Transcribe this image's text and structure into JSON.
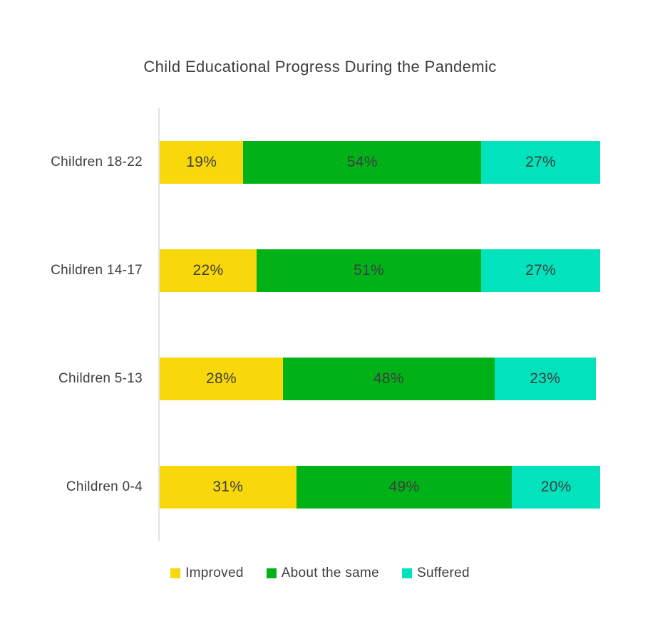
{
  "title": "Child Educational Progress During the Pandemic",
  "chart_data": {
    "type": "bar",
    "variant": "horizontal-stacked",
    "title": "Child Educational Progress During the Pandemic",
    "categories": [
      "Children 18-22",
      "Children 14-17",
      "Children 5-13",
      "Children 0-4"
    ],
    "series": [
      {
        "name": "Improved",
        "color": "#f8d80a",
        "values": [
          19,
          22,
          28,
          31
        ]
      },
      {
        "name": "About the same",
        "color": "#00b218",
        "values": [
          54,
          51,
          48,
          49
        ]
      },
      {
        "name": "Suffered",
        "color": "#02e3bd",
        "values": [
          27,
          27,
          23,
          20
        ]
      }
    ],
    "value_suffix": "%",
    "xlim": [
      0,
      100
    ],
    "grid": false,
    "legend_position": "bottom",
    "data_labels": "inside-center"
  },
  "colors": {
    "text": "#3e3e3e",
    "axis_line": "#e4e4e4",
    "background": "#ffffff"
  }
}
